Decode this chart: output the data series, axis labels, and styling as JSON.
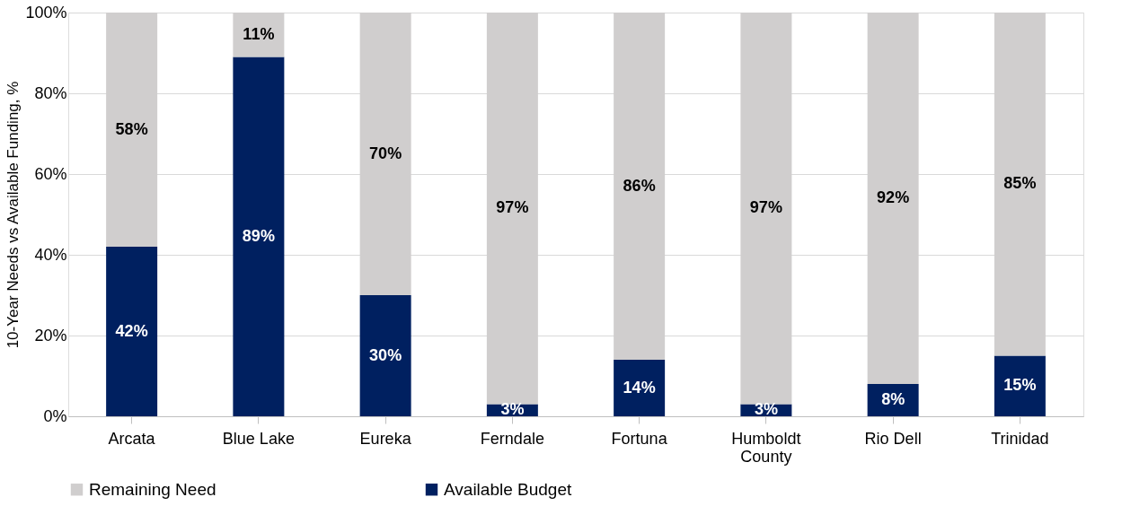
{
  "chart_data": {
    "type": "bar",
    "stacked": true,
    "ylabel": "10-Year Needs vs Available Funding, %",
    "categories": [
      "Arcata",
      "Blue Lake",
      "Eureka",
      "Ferndale",
      "Fortuna",
      "Humboldt County",
      "Rio Dell",
      "Trinidad"
    ],
    "series": [
      {
        "name": "Available Budget",
        "color": "#002060",
        "values": [
          42,
          89,
          30,
          3,
          14,
          3,
          8,
          15
        ],
        "value_labels": [
          "42%",
          "89%",
          "30%",
          "3%",
          "14%",
          "3%",
          "8%",
          "15%"
        ]
      },
      {
        "name": "Remaining Need",
        "color": "#d0cece",
        "values": [
          58,
          11,
          70,
          97,
          86,
          97,
          92,
          85
        ],
        "value_labels": [
          "58%",
          "11%",
          "70%",
          "97%",
          "86%",
          "97%",
          "92%",
          "85%"
        ]
      }
    ],
    "ylim": [
      0,
      100
    ],
    "yticks": [
      {
        "value": 0,
        "label": "0%"
      },
      {
        "value": 20,
        "label": "20%"
      },
      {
        "value": 40,
        "label": "40%"
      },
      {
        "value": 60,
        "label": "60%"
      },
      {
        "value": 80,
        "label": "80%"
      },
      {
        "value": 100,
        "label": "100%"
      }
    ],
    "grid": "y",
    "legend": "bottom"
  }
}
